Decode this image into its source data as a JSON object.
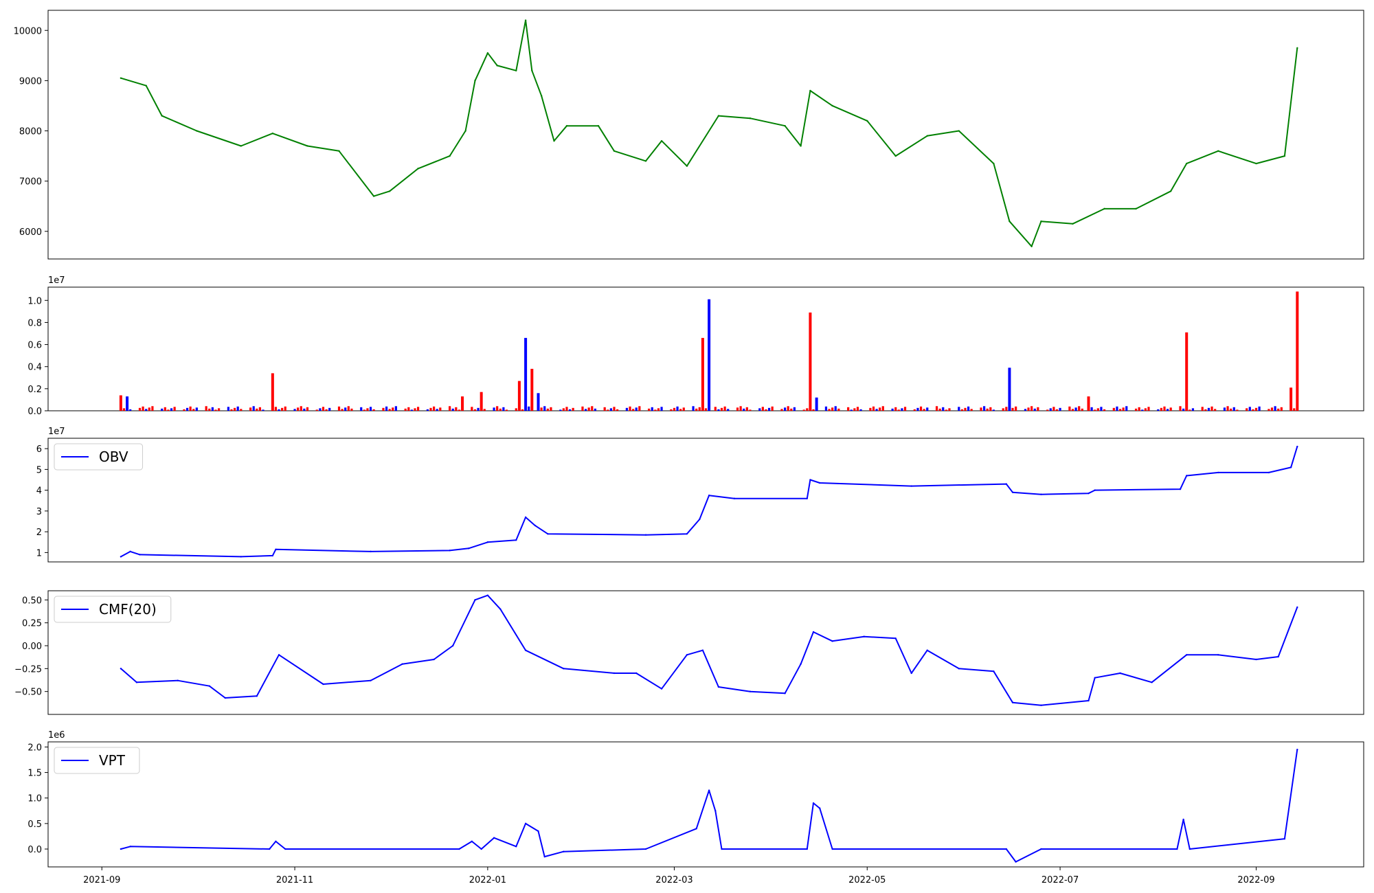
{
  "chart_data": [
    {
      "type": "line",
      "title": "",
      "xlabel": "",
      "ylabel": "",
      "color": "#008000",
      "ylim": [
        5450,
        10400
      ],
      "yticks": [
        6000,
        7000,
        8000,
        9000,
        10000
      ],
      "ytick_labels": [
        "6000",
        "7000",
        "8000",
        "9000",
        "10000"
      ],
      "x": [
        "2021-09-07",
        "2021-09-15",
        "2021-09-20",
        "2021-10-01",
        "2021-10-15",
        "2021-10-25",
        "2021-11-05",
        "2021-11-15",
        "2021-11-26",
        "2021-12-01",
        "2021-12-10",
        "2021-12-20",
        "2021-12-25",
        "2021-12-28",
        "2022-01-01",
        "2022-01-04",
        "2022-01-10",
        "2022-01-13",
        "2022-01-15",
        "2022-01-18",
        "2022-01-22",
        "2022-01-26",
        "2022-02-05",
        "2022-02-10",
        "2022-02-20",
        "2022-02-25",
        "2022-03-05",
        "2022-03-15",
        "2022-03-25",
        "2022-04-05",
        "2022-04-10",
        "2022-04-13",
        "2022-04-20",
        "2022-05-01",
        "2022-05-10",
        "2022-05-20",
        "2022-05-30",
        "2022-06-10",
        "2022-06-15",
        "2022-06-22",
        "2022-06-25",
        "2022-07-05",
        "2022-07-15",
        "2022-07-25",
        "2022-08-05",
        "2022-08-10",
        "2022-08-20",
        "2022-09-01",
        "2022-09-10",
        "2022-09-14"
      ],
      "values": [
        9050,
        8900,
        8300,
        8000,
        7700,
        7950,
        7700,
        7600,
        6700,
        6800,
        7250,
        7500,
        8000,
        9000,
        9550,
        9300,
        9200,
        10200,
        9200,
        8700,
        7800,
        8100,
        8100,
        7600,
        7400,
        7800,
        7300,
        8300,
        8250,
        8100,
        7700,
        8800,
        8500,
        8200,
        7500,
        7900,
        8000,
        7350,
        6200,
        5700,
        6200,
        6150,
        6450,
        6450,
        6800,
        7350,
        7600,
        7350,
        7500,
        9650
      ]
    },
    {
      "type": "bar",
      "title": "",
      "xlabel": "",
      "ylabel": "",
      "scale_label": "1e7",
      "up_color": "#ff0000",
      "down_color": "#0000ff",
      "ylim": [
        0,
        1.12
      ],
      "yticks": [
        0,
        0.2,
        0.4,
        0.6,
        0.8,
        1.0
      ],
      "ytick_labels": [
        "0.0",
        "0.2",
        "0.4",
        "0.6",
        "0.8",
        "1.0"
      ],
      "major_bars": [
        {
          "x": "2021-09-07",
          "value": 0.14,
          "dir": "up"
        },
        {
          "x": "2021-09-09",
          "value": 0.13,
          "dir": "down"
        },
        {
          "x": "2021-10-25",
          "value": 0.34,
          "dir": "up"
        },
        {
          "x": "2021-12-24",
          "value": 0.13,
          "dir": "up"
        },
        {
          "x": "2021-12-30",
          "value": 0.17,
          "dir": "up"
        },
        {
          "x": "2022-01-11",
          "value": 0.27,
          "dir": "up"
        },
        {
          "x": "2022-01-13",
          "value": 0.66,
          "dir": "down"
        },
        {
          "x": "2022-01-15",
          "value": 0.38,
          "dir": "up"
        },
        {
          "x": "2022-01-17",
          "value": 0.16,
          "dir": "down"
        },
        {
          "x": "2022-03-10",
          "value": 0.66,
          "dir": "up"
        },
        {
          "x": "2022-03-12",
          "value": 1.01,
          "dir": "down"
        },
        {
          "x": "2022-04-13",
          "value": 0.89,
          "dir": "up"
        },
        {
          "x": "2022-04-15",
          "value": 0.12,
          "dir": "down"
        },
        {
          "x": "2022-06-15",
          "value": 0.39,
          "dir": "down"
        },
        {
          "x": "2022-07-10",
          "value": 0.13,
          "dir": "up"
        },
        {
          "x": "2022-08-10",
          "value": 0.71,
          "dir": "up"
        },
        {
          "x": "2022-09-12",
          "value": 0.21,
          "dir": "up"
        },
        {
          "x": "2022-09-14",
          "value": 1.08,
          "dir": "up"
        }
      ]
    },
    {
      "type": "line",
      "title": "",
      "xlabel": "",
      "ylabel": "",
      "scale_label": "1e7",
      "color": "#0000ff",
      "legend": "OBV",
      "legend_loc": "upper left",
      "ylim": [
        0.55,
        6.5
      ],
      "yticks": [
        1,
        2,
        3,
        4,
        5,
        6
      ],
      "ytick_labels": [
        "1",
        "2",
        "3",
        "4",
        "5",
        "6"
      ],
      "x": [
        "2021-09-07",
        "2021-09-10",
        "2021-09-13",
        "2021-10-15",
        "2021-10-25",
        "2021-10-26",
        "2021-11-25",
        "2021-12-20",
        "2021-12-26",
        "2022-01-01",
        "2022-01-10",
        "2022-01-13",
        "2022-01-16",
        "2022-01-20",
        "2022-02-20",
        "2022-03-05",
        "2022-03-09",
        "2022-03-12",
        "2022-03-20",
        "2022-04-12",
        "2022-04-13",
        "2022-04-16",
        "2022-05-15",
        "2022-06-14",
        "2022-06-16",
        "2022-06-25",
        "2022-07-10",
        "2022-07-12",
        "2022-08-08",
        "2022-08-10",
        "2022-08-20",
        "2022-09-05",
        "2022-09-12",
        "2022-09-14"
      ],
      "values": [
        0.8,
        1.05,
        0.9,
        0.8,
        0.85,
        1.15,
        1.05,
        1.1,
        1.2,
        1.5,
        1.6,
        2.7,
        2.3,
        1.9,
        1.85,
        1.9,
        2.6,
        3.75,
        3.6,
        3.6,
        4.5,
        4.35,
        4.2,
        4.3,
        3.9,
        3.8,
        3.85,
        4.0,
        4.05,
        4.7,
        4.85,
        4.85,
        5.1,
        6.1
      ]
    },
    {
      "type": "line",
      "title": "",
      "xlabel": "",
      "ylabel": "",
      "color": "#0000ff",
      "legend": "CMF(20)",
      "legend_loc": "upper left",
      "ylim": [
        -0.75,
        0.6
      ],
      "yticks": [
        -0.5,
        -0.25,
        0.0,
        0.25,
        0.5
      ],
      "ytick_labels": [
        "−0.50",
        "−0.25",
        "0.00",
        "0.25",
        "0.50"
      ],
      "x": [
        "2021-09-07",
        "2021-09-12",
        "2021-09-25",
        "2021-10-05",
        "2021-10-10",
        "2021-10-20",
        "2021-10-27",
        "2021-11-10",
        "2021-11-25",
        "2021-12-05",
        "2021-12-15",
        "2021-12-21",
        "2021-12-28",
        "2022-01-01",
        "2022-01-05",
        "2022-01-13",
        "2022-01-25",
        "2022-02-10",
        "2022-02-17",
        "2022-02-25",
        "2022-03-05",
        "2022-03-10",
        "2022-03-15",
        "2022-03-25",
        "2022-04-05",
        "2022-04-10",
        "2022-04-14",
        "2022-04-20",
        "2022-04-30",
        "2022-05-10",
        "2022-05-15",
        "2022-05-20",
        "2022-05-30",
        "2022-06-10",
        "2022-06-16",
        "2022-06-25",
        "2022-07-10",
        "2022-07-12",
        "2022-07-20",
        "2022-07-30",
        "2022-08-10",
        "2022-08-20",
        "2022-09-01",
        "2022-09-08",
        "2022-09-14"
      ],
      "values": [
        -0.25,
        -0.4,
        -0.38,
        -0.44,
        -0.57,
        -0.55,
        -0.1,
        -0.42,
        -0.38,
        -0.2,
        -0.15,
        0.0,
        0.5,
        0.55,
        0.4,
        -0.05,
        -0.25,
        -0.3,
        -0.3,
        -0.47,
        -0.1,
        -0.05,
        -0.45,
        -0.5,
        -0.52,
        -0.2,
        0.15,
        0.05,
        0.1,
        0.08,
        -0.3,
        -0.05,
        -0.25,
        -0.28,
        -0.62,
        -0.65,
        -0.6,
        -0.35,
        -0.3,
        -0.4,
        -0.1,
        -0.1,
        -0.15,
        -0.12,
        0.42
      ]
    },
    {
      "type": "line",
      "title": "",
      "xlabel": "",
      "ylabel": "",
      "scale_label": "1e6",
      "color": "#0000ff",
      "legend": "VPT",
      "legend_loc": "upper left",
      "ylim": [
        -0.35,
        2.1
      ],
      "yticks": [
        0.0,
        0.5,
        1.0,
        1.5,
        2.0
      ],
      "ytick_labels": [
        "0.0",
        "0.5",
        "1.0",
        "1.5",
        "2.0"
      ],
      "x": [
        "2021-09-07",
        "2021-09-10",
        "2021-10-24",
        "2021-10-26",
        "2021-10-29",
        "2021-12-23",
        "2021-12-27",
        "2021-12-30",
        "2022-01-03",
        "2022-01-10",
        "2022-01-13",
        "2022-01-17",
        "2022-01-19",
        "2022-01-25",
        "2022-02-20",
        "2022-03-08",
        "2022-03-12",
        "2022-03-14",
        "2022-03-16",
        "2022-04-12",
        "2022-04-14",
        "2022-04-16",
        "2022-04-20",
        "2022-06-14",
        "2022-06-17",
        "2022-06-25",
        "2022-08-07",
        "2022-08-09",
        "2022-08-11",
        "2022-09-10",
        "2022-09-14"
      ],
      "values": [
        0.0,
        0.05,
        0.0,
        0.15,
        0.0,
        0.0,
        0.15,
        0.0,
        0.22,
        0.05,
        0.5,
        0.35,
        -0.15,
        -0.05,
        0.0,
        0.4,
        1.15,
        0.75,
        0.0,
        0.0,
        0.9,
        0.8,
        0.0,
        0.0,
        -0.25,
        0.0,
        0.0,
        0.58,
        0.0,
        0.2,
        1.95
      ]
    }
  ],
  "xaxis": {
    "range": [
      "2021-08-15",
      "2022-10-05"
    ],
    "ticks": [
      "2021-09",
      "2021-11",
      "2022-01",
      "2022-03",
      "2022-05",
      "2022-07",
      "2022-09"
    ],
    "tick_dates": [
      "2021-09-01",
      "2021-11-01",
      "2022-01-01",
      "2022-03-01",
      "2022-05-01",
      "2022-07-01",
      "2022-09-01"
    ]
  }
}
